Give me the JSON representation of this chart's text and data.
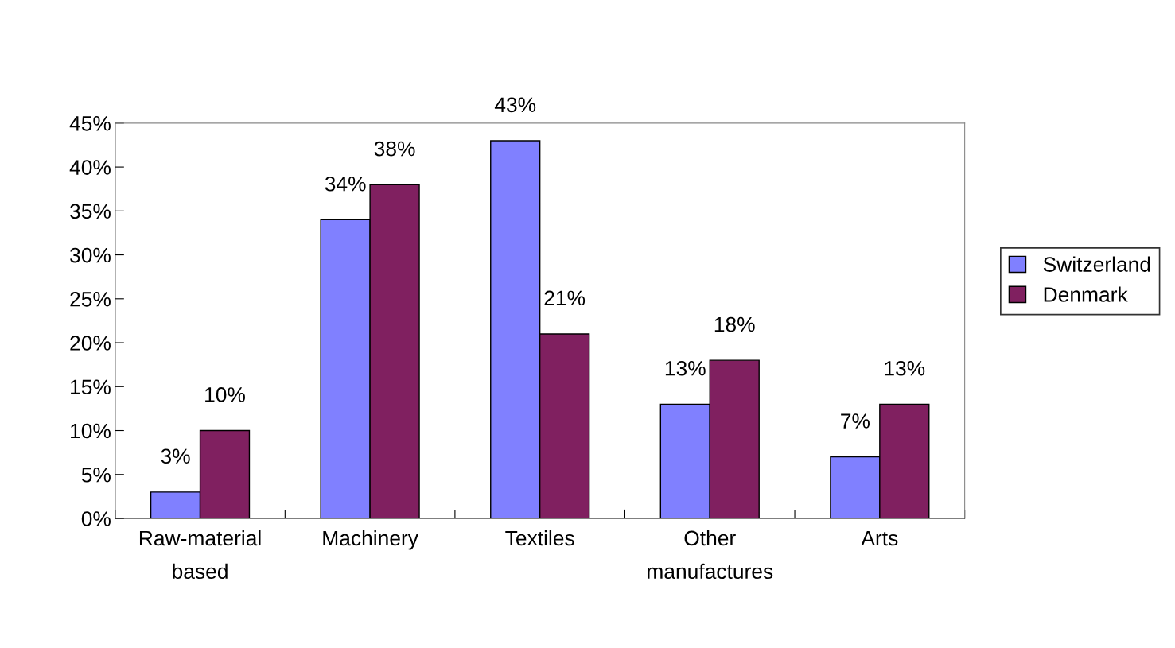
{
  "chart_data": {
    "type": "bar",
    "categories": [
      "Raw-material\nbased",
      "Machinery",
      "Textiles",
      "Other\nmanufactures",
      "Arts"
    ],
    "series": [
      {
        "name": "Switzerland",
        "color": "#8080ff",
        "values": [
          3,
          34,
          43,
          13,
          7
        ],
        "value_labels": [
          "3%",
          "34%",
          "43%",
          "13%",
          "7%"
        ]
      },
      {
        "name": "Denmark",
        "color": "#802060",
        "values": [
          10,
          38,
          21,
          18,
          13
        ],
        "value_labels": [
          "10%",
          "38%",
          "21%",
          "18%",
          "13%"
        ]
      }
    ],
    "ylim": [
      0,
      45
    ],
    "yticks": [
      {
        "value": 0,
        "label": "0%"
      },
      {
        "value": 5,
        "label": "5%"
      },
      {
        "value": 10,
        "label": "10%"
      },
      {
        "value": 15,
        "label": "15%"
      },
      {
        "value": 20,
        "label": "20%"
      },
      {
        "value": 25,
        "label": "25%"
      },
      {
        "value": 30,
        "label": "30%"
      },
      {
        "value": 35,
        "label": "35%"
      },
      {
        "value": 40,
        "label": "40%"
      },
      {
        "value": 45,
        "label": "45%"
      }
    ],
    "grid": false,
    "legend": "right"
  }
}
